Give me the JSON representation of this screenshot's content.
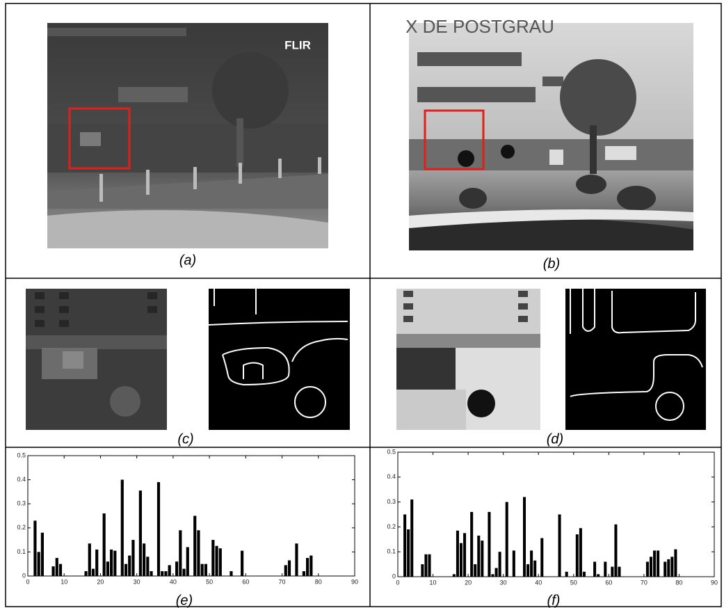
{
  "figure": {
    "logo": "FLIR",
    "sign": "X DE POSTGRAU",
    "captions": [
      "(a)",
      "(b)",
      "(c)",
      "(d)",
      "(e)",
      "(f)"
    ]
  },
  "chart_data": [
    {
      "type": "bar",
      "color": "#000000",
      "x": [
        2,
        3,
        4,
        7,
        8,
        9,
        16,
        17,
        18,
        19,
        21,
        22,
        23,
        24,
        26,
        27,
        28,
        29,
        31,
        32,
        33,
        34,
        36,
        37,
        38,
        39,
        41,
        42,
        43,
        44,
        46,
        47,
        48,
        49,
        51,
        52,
        53,
        56,
        59,
        71,
        72,
        74,
        76,
        77,
        78
      ],
      "values": [
        0.23,
        0.1,
        0.18,
        0.04,
        0.075,
        0.05,
        0.02,
        0.135,
        0.03,
        0.11,
        0.26,
        0.06,
        0.11,
        0.105,
        0.4,
        0.05,
        0.085,
        0.15,
        0.355,
        0.135,
        0.08,
        0.02,
        0.39,
        0.02,
        0.02,
        0.045,
        0.06,
        0.19,
        0.03,
        0.12,
        0.25,
        0.19,
        0.05,
        0.05,
        0.15,
        0.125,
        0.115,
        0.02,
        0.105,
        0.045,
        0.065,
        0.135,
        0.02,
        0.075,
        0.085
      ],
      "xlim": [
        0,
        90
      ],
      "xticks": [
        0,
        10,
        20,
        30,
        40,
        50,
        60,
        70,
        80,
        90
      ],
      "ylim": [
        0,
        0.5
      ],
      "yticks": [
        0,
        0.1,
        0.2,
        0.3,
        0.4,
        0.5
      ]
    },
    {
      "type": "bar",
      "color": "#000000",
      "x": [
        2,
        3,
        4,
        7,
        8,
        9,
        16,
        17,
        18,
        19,
        21,
        22,
        23,
        24,
        26,
        27,
        28,
        29,
        31,
        33,
        36,
        37,
        38,
        39,
        41,
        46,
        48,
        51,
        52,
        53,
        56,
        57,
        59,
        61,
        62,
        63,
        71,
        72,
        73,
        74,
        76,
        77,
        78,
        79
      ],
      "values": [
        0.25,
        0.19,
        0.31,
        0.05,
        0.09,
        0.09,
        0.01,
        0.185,
        0.135,
        0.175,
        0.26,
        0.05,
        0.165,
        0.145,
        0.26,
        0.01,
        0.035,
        0.1,
        0.3,
        0.105,
        0.32,
        0.05,
        0.105,
        0.065,
        0.155,
        0.25,
        0.02,
        0.17,
        0.195,
        0.02,
        0.06,
        0.01,
        0.06,
        0.04,
        0.21,
        0.04,
        0.06,
        0.08,
        0.105,
        0.105,
        0.06,
        0.07,
        0.08,
        0.11
      ],
      "xlim": [
        0,
        90
      ],
      "xticks": [
        0,
        10,
        20,
        30,
        40,
        50,
        60,
        70,
        80,
        90
      ],
      "ylim": [
        0,
        0.5
      ],
      "yticks": [
        0,
        0.1,
        0.2,
        0.3,
        0.4,
        0.5
      ]
    }
  ]
}
